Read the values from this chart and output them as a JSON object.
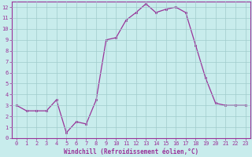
{
  "x": [
    0,
    1,
    2,
    3,
    4,
    5,
    6,
    7,
    8,
    9,
    10,
    11,
    12,
    13,
    14,
    15,
    16,
    17,
    18,
    19,
    20,
    21,
    22,
    23
  ],
  "y": [
    3.0,
    2.5,
    2.5,
    2.5,
    3.5,
    0.5,
    1.5,
    1.3,
    3.5,
    9.0,
    9.2,
    10.8,
    11.5,
    12.3,
    11.5,
    11.8,
    12.0,
    11.5,
    8.5,
    5.5,
    3.2,
    3.0,
    3.0,
    3.0
  ],
  "line_color": "#993399",
  "marker": "s",
  "markersize": 1.8,
  "linewidth": 0.9,
  "bg_color": "#c8ecec",
  "grid_color": "#a0cccc",
  "xlabel": "Windchill (Refroidissement éolien,°C)",
  "ylabel": "",
  "xlim": [
    -0.5,
    23.5
  ],
  "ylim": [
    0,
    12.5
  ],
  "yticks": [
    0,
    1,
    2,
    3,
    4,
    5,
    6,
    7,
    8,
    9,
    10,
    11,
    12
  ],
  "xticks": [
    0,
    1,
    2,
    3,
    4,
    5,
    6,
    7,
    8,
    9,
    10,
    11,
    12,
    13,
    14,
    15,
    16,
    17,
    18,
    19,
    20,
    21,
    22,
    23
  ],
  "axis_color": "#993399",
  "tick_color": "#993399",
  "label_color": "#993399",
  "tick_fontsize": 5.0,
  "xlabel_fontsize": 5.5
}
